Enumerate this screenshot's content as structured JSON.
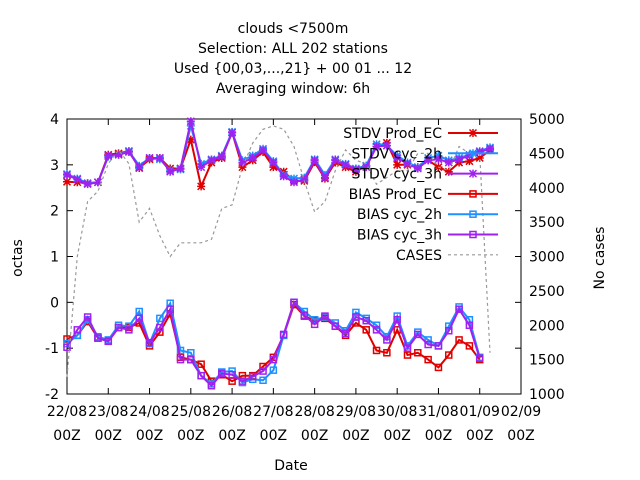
{
  "chart_data": {
    "type": "line",
    "title_lines": [
      "clouds <7500m",
      "Selection: ALL    202 stations",
      "Used {00,03,...,21} + 00 01 ... 12",
      "Averaging window:  6h"
    ],
    "xlabel": "Date",
    "ylabel": "octas",
    "y2label": "No cases",
    "ylim": [
      -2,
      4
    ],
    "y2lim": [
      1000,
      5000
    ],
    "yticks": [
      "-2",
      "-1",
      "0",
      "1",
      "2",
      "3",
      "4"
    ],
    "y2ticks": [
      "1000",
      "1500",
      "2000",
      "2500",
      "3000",
      "3500",
      "4000",
      "4500",
      "5000"
    ],
    "xticks": [
      {
        "date": "22/08",
        "time": "00Z"
      },
      {
        "date": "23/08",
        "time": "00Z"
      },
      {
        "date": "24/08",
        "time": "00Z"
      },
      {
        "date": "25/08",
        "time": "00Z"
      },
      {
        "date": "26/08",
        "time": "00Z"
      },
      {
        "date": "27/08",
        "time": "00Z"
      },
      {
        "date": "28/08",
        "time": "00Z"
      },
      {
        "date": "29/08",
        "time": "00Z"
      },
      {
        "date": "30/08",
        "time": "00Z"
      },
      {
        "date": "31/08",
        "time": "00Z"
      },
      {
        "date": "01/09",
        "time": "00Z"
      },
      {
        "date": "02/09",
        "time": "00Z"
      }
    ],
    "x_hours": [
      0,
      6,
      12,
      18,
      24,
      30,
      36,
      42,
      48,
      54,
      60,
      66,
      72,
      78,
      84,
      90,
      96,
      102,
      108,
      114,
      120,
      126,
      132,
      138,
      144,
      150,
      156,
      162,
      168,
      174,
      180,
      186,
      192,
      198,
      204,
      210,
      216,
      222,
      228,
      234,
      240,
      246,
      252,
      258,
      264
    ],
    "legend_position": "top-right",
    "series": [
      {
        "name": "STDV Prod_EC",
        "color": "#e00000",
        "marker": "star",
        "axis": "y",
        "values": [
          2.63,
          2.62,
          2.6,
          2.62,
          3.22,
          3.25,
          3.3,
          2.93,
          3.12,
          3.15,
          2.92,
          2.92,
          3.55,
          2.53,
          3.05,
          3.15,
          3.71,
          2.95,
          3.1,
          3.28,
          2.95,
          2.85,
          2.65,
          2.65,
          3.06,
          2.7,
          3.05,
          2.95,
          2.85,
          2.98,
          3.4,
          3.48,
          3.0,
          3.0,
          2.95,
          3.1,
          2.95,
          2.85,
          3.05,
          3.08,
          3.15,
          3.32,
          null,
          null,
          null
        ]
      },
      {
        "name": "STDV cyc_2h",
        "color": "#1e90ff",
        "marker": "star",
        "axis": "y",
        "values": [
          2.8,
          2.7,
          2.6,
          2.62,
          3.18,
          3.22,
          3.3,
          2.98,
          3.15,
          3.12,
          2.88,
          2.9,
          3.85,
          3.02,
          3.12,
          3.2,
          3.72,
          3.1,
          3.2,
          3.35,
          3.08,
          2.78,
          2.7,
          2.72,
          3.12,
          2.78,
          3.12,
          3.02,
          2.92,
          2.98,
          3.45,
          3.42,
          3.2,
          3.05,
          2.95,
          3.15,
          3.2,
          3.1,
          3.15,
          3.22,
          3.3,
          3.38,
          null,
          null,
          null
        ]
      },
      {
        "name": "STDV cyc_3h",
        "color": "#a020f0",
        "marker": "star",
        "axis": "y",
        "values": [
          2.78,
          2.68,
          2.58,
          2.62,
          3.2,
          3.22,
          3.28,
          2.95,
          3.15,
          3.15,
          2.85,
          2.92,
          3.95,
          2.95,
          3.1,
          3.18,
          3.7,
          3.05,
          3.15,
          3.32,
          3.05,
          2.75,
          2.62,
          2.68,
          3.1,
          2.72,
          3.1,
          3.0,
          2.9,
          2.95,
          3.4,
          3.42,
          3.15,
          3.02,
          2.92,
          3.1,
          3.12,
          3.05,
          3.12,
          3.2,
          3.28,
          3.35,
          null,
          null,
          null
        ]
      },
      {
        "name": "BIAS Prod_EC",
        "color": "#e00000",
        "marker": "square",
        "axis": "y",
        "values": [
          -0.8,
          -0.72,
          -0.42,
          -0.78,
          -0.85,
          -0.55,
          -0.55,
          -0.45,
          -0.95,
          -0.65,
          -0.25,
          -1.2,
          -1.25,
          -1.35,
          -1.72,
          -1.58,
          -1.72,
          -1.6,
          -1.6,
          -1.4,
          -1.2,
          -0.72,
          -0.05,
          -0.3,
          -0.4,
          -0.35,
          -0.52,
          -0.72,
          -0.45,
          -0.6,
          -1.05,
          -1.1,
          -0.6,
          -1.15,
          -1.1,
          -1.25,
          -1.42,
          -1.15,
          -0.82,
          -0.95,
          -1.25,
          null,
          null,
          null,
          null
        ]
      },
      {
        "name": "BIAS cyc_2h",
        "color": "#1e90ff",
        "marker": "square",
        "axis": "y",
        "values": [
          -0.9,
          -0.72,
          -0.38,
          -0.75,
          -0.82,
          -0.5,
          -0.52,
          -0.2,
          -0.9,
          -0.35,
          -0.02,
          -1.05,
          -1.1,
          -1.6,
          -1.78,
          -1.52,
          -1.5,
          -1.75,
          -1.68,
          -1.7,
          -1.48,
          -0.72,
          0.0,
          -0.2,
          -0.38,
          -0.32,
          -0.45,
          -0.62,
          -0.22,
          -0.35,
          -0.5,
          -0.75,
          -0.3,
          -0.95,
          -0.65,
          -0.82,
          -0.95,
          -0.52,
          -0.1,
          -0.38,
          -1.2,
          null,
          null,
          null,
          null
        ]
      },
      {
        "name": "BIAS cyc_3h",
        "color": "#a020f0",
        "marker": "square",
        "axis": "y",
        "values": [
          -0.98,
          -0.6,
          -0.32,
          -0.78,
          -0.85,
          -0.55,
          -0.6,
          -0.35,
          -0.88,
          -0.55,
          -0.15,
          -1.25,
          -1.25,
          -1.6,
          -1.82,
          -1.55,
          -1.58,
          -1.72,
          -1.62,
          -1.5,
          -1.25,
          -0.7,
          0.0,
          -0.28,
          -0.48,
          -0.3,
          -0.52,
          -0.68,
          -0.32,
          -0.4,
          -0.6,
          -0.82,
          -0.38,
          -1.0,
          -0.7,
          -0.92,
          -0.95,
          -0.62,
          -0.15,
          -0.5,
          -1.22,
          null,
          null,
          null,
          null
        ]
      },
      {
        "name": "CASES",
        "color": "#999999",
        "marker": "none",
        "dashed": true,
        "axis": "y2",
        "values": [
          1250,
          3000,
          3800,
          3950,
          4350,
          4550,
          4350,
          3500,
          3700,
          3300,
          3000,
          3200,
          3200,
          3200,
          3250,
          3700,
          3750,
          4300,
          4650,
          4850,
          4900,
          4850,
          4600,
          4100,
          3650,
          3800,
          4250,
          4550,
          4400,
          4350,
          4050,
          4150,
          4250,
          4250,
          4500,
          4500,
          4300,
          4250,
          4600,
          4500,
          4500,
          1600,
          null,
          null,
          null
        ]
      }
    ]
  }
}
